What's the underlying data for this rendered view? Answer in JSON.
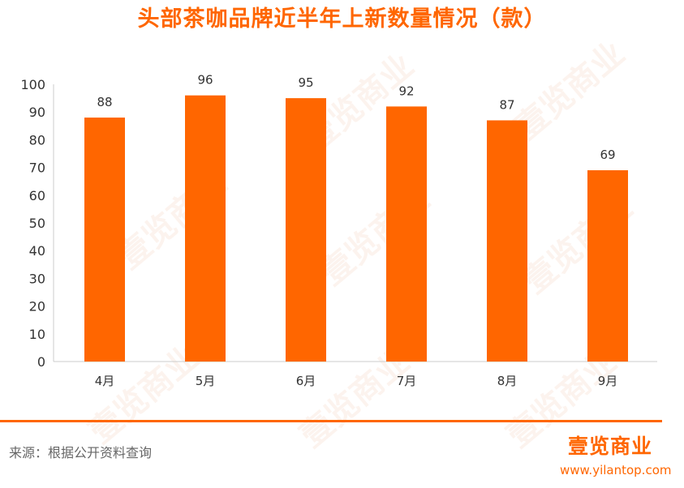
{
  "title": "头部茶咖品牌近半年上新数量情况（款）",
  "source": "来源：根据公开资料查询",
  "brand": {
    "logo_text": "壹览商业",
    "url": "www.yilantop.com"
  },
  "watermark": "壹览商业",
  "colors": {
    "accent": "#ff6600",
    "bar": "#ff6600",
    "title": "#ff6600",
    "axis_text": "#333333",
    "axis_line": "#cccccc"
  },
  "chart_data": {
    "type": "bar",
    "title": "头部茶咖品牌近半年上新数量情况（款）",
    "categories": [
      "4月",
      "5月",
      "6月",
      "7月",
      "8月",
      "9月"
    ],
    "values": [
      88,
      96,
      95,
      92,
      87,
      69
    ],
    "ylim": [
      0,
      100
    ],
    "yticks": [
      0,
      10,
      20,
      30,
      40,
      50,
      60,
      70,
      80,
      90,
      100
    ],
    "xlabel": "",
    "ylabel": "",
    "grid": false,
    "data_labels": true
  }
}
